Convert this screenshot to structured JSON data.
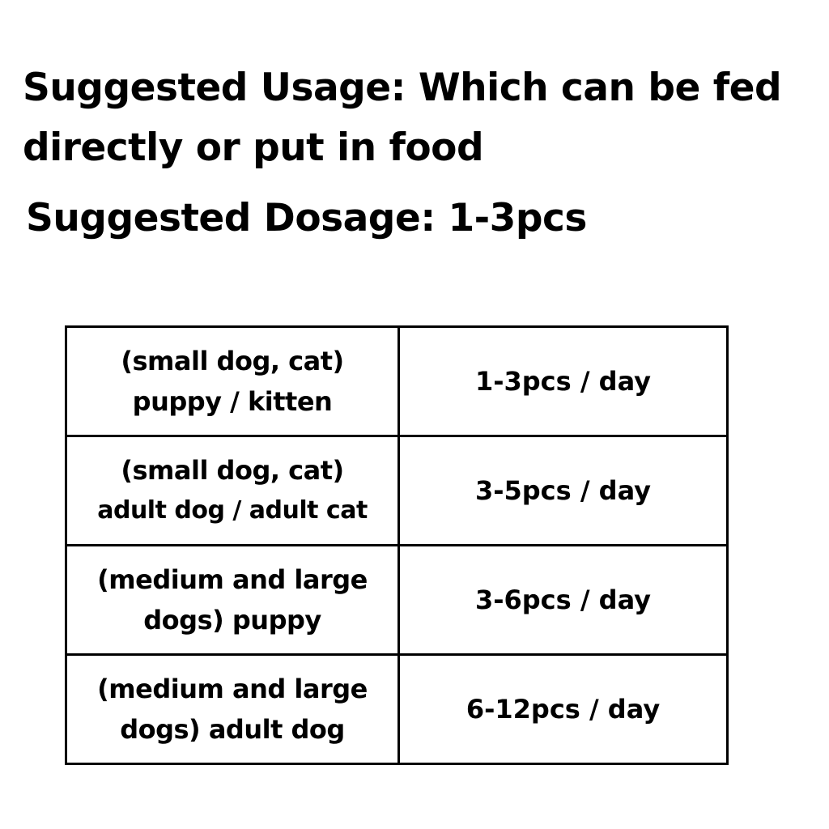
{
  "usage": "Suggested Usage: Which can be fed directly or put in food",
  "dosage": "Suggested Dosage: 1-3pcs",
  "rows": [
    {
      "l1": "(small dog, cat)",
      "l2": "puppy / kitten",
      "dose": "1-3pcs / day"
    },
    {
      "l1": "(small dog, cat)",
      "l2": "adult dog / adult cat",
      "dose": "3-5pcs / day"
    },
    {
      "l1": "(medium and large",
      "l2": "dogs) puppy",
      "dose": "3-6pcs / day"
    },
    {
      "l1": "(medium and large",
      "l2": "dogs) adult dog",
      "dose": "6-12pcs / day"
    }
  ]
}
